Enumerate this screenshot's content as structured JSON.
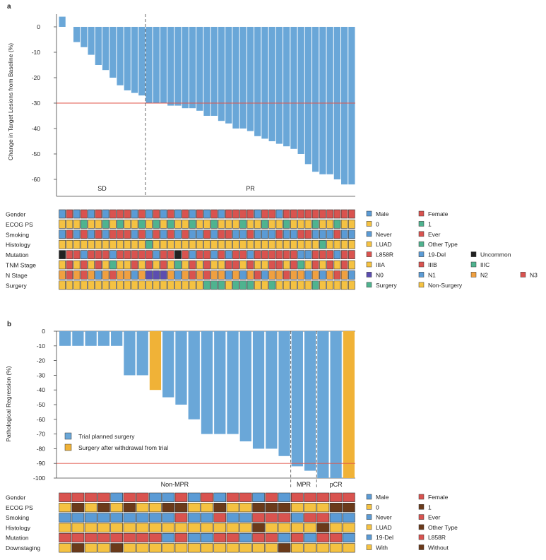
{
  "colors": {
    "bar": "#6aa7d8",
    "bar_alt": "#f0b237",
    "ref_line": "#e0564a",
    "red": "#d9534f",
    "blue": "#5b9bd5",
    "yellow": "#f5c242",
    "green": "#4fb38f",
    "orange": "#f0a040",
    "purple": "#5b4db0",
    "dark": "#222222",
    "brown": "#6b3a1a"
  },
  "chart_data": [
    {
      "type": "bar",
      "panel": "a",
      "ylabel": "Change in Target Lesions from Baseline (%)",
      "ylim": [
        -65,
        5
      ],
      "yticks": [
        0,
        -10,
        -20,
        -30,
        -40,
        -50,
        -60
      ],
      "reference_line": -30,
      "values": [
        4,
        0,
        -6,
        -8,
        -11,
        -15,
        -17,
        -20,
        -23,
        -25,
        -26,
        -27,
        -30,
        -30,
        -30,
        -31,
        -31,
        -32,
        -32,
        -33,
        -35,
        -35,
        -37,
        -38,
        -40,
        -40,
        -41,
        -43,
        -44,
        -45,
        -46,
        -47,
        -48,
        -50,
        -54,
        -57,
        -58,
        -58,
        -60,
        -62,
        -62
      ],
      "groups": [
        {
          "label": "SD",
          "start": 0,
          "end": 12
        },
        {
          "label": "PR",
          "start": 12,
          "end": 41
        }
      ]
    },
    {
      "type": "bar",
      "panel": "b",
      "ylabel": "Pathological Regression (%)",
      "ylim": [
        -100,
        0
      ],
      "yticks": [
        0,
        -10,
        -20,
        -30,
        -40,
        -50,
        -60,
        -70,
        -80,
        -90,
        -100
      ],
      "reference_line": -90,
      "values": [
        -10,
        -10,
        -10,
        -10,
        -10,
        -30,
        -30,
        -40,
        -45,
        -50,
        -60,
        -70,
        -70,
        -70,
        -75,
        -80,
        -80,
        -85,
        -92,
        -95,
        -100,
        -100,
        -100
      ],
      "bar_series": [
        0,
        0,
        0,
        0,
        0,
        0,
        0,
        1,
        0,
        0,
        0,
        0,
        0,
        0,
        0,
        0,
        0,
        0,
        0,
        0,
        0,
        0,
        1
      ],
      "series": [
        {
          "name": "Trial planned surgery"
        },
        {
          "name": "Surgery after withdrawal from trial"
        }
      ],
      "groups": [
        {
          "label": "Non-MPR",
          "start": 0,
          "end": 18
        },
        {
          "label": "MPR",
          "start": 18,
          "end": 20
        },
        {
          "label": "pCR",
          "start": 20,
          "end": 23
        }
      ]
    }
  ],
  "panel_a": {
    "label": "a",
    "rows": [
      {
        "name": "Gender",
        "cells": "BRBRBRBRRRBRBRBRBRBRBRBRRRRBRRBRRRRRRRRRR",
        "legend": [
          {
            "c": "B",
            "label": "Male"
          },
          {
            "c": "R",
            "label": "Female"
          }
        ]
      },
      {
        "name": "ECOG PS",
        "cells": "YYYGYYGYGYYGYGYGYYGYYGYYYGYYGYYGYYYGYYGYY",
        "legend": [
          {
            "c": "Y",
            "label": "0"
          },
          {
            "c": "G",
            "label": "1"
          }
        ]
      },
      {
        "name": "Smoking",
        "cells": "BRBRBRBRRRBRBRBRBRBBRBRRBBRBBBRBBRRBBBRBB",
        "legend": [
          {
            "c": "B",
            "label": "Never"
          },
          {
            "c": "R",
            "label": "Ever"
          }
        ]
      },
      {
        "name": "Histology",
        "cells": "YYYYYYYYYYYYGYYYYYYYYYYYYYYYYYYYYYYYGYYYY",
        "legend": [
          {
            "c": "Y",
            "label": "LUAD"
          },
          {
            "c": "G",
            "label": "Other Type"
          }
        ]
      },
      {
        "name": "Mutation",
        "cells": "KRRBRRRBRRRRRBRRKRBRRBRBRRBRRRRRRBBRRRBRR",
        "legend": [
          {
            "c": "R",
            "label": "L858R"
          },
          {
            "c": "B",
            "label": "19-Del"
          },
          {
            "c": "K",
            "label": "Uncommon"
          }
        ]
      },
      {
        "name": "TNM Stage",
        "cells": "YRYRYRYGYYRYRYRYGYRYRYYRRYRYYRRYRGYRYRYRY",
        "legend": [
          {
            "c": "Y",
            "label": "IIIA"
          },
          {
            "c": "R",
            "label": "IIIB"
          },
          {
            "c": "G",
            "label": "IIIC"
          }
        ]
      },
      {
        "name": "N Stage",
        "cells": "OROROBOROOBOPPPOBOROROOBOBORBOOROOBOBOROB",
        "legend": [
          {
            "c": "P",
            "label": "N0"
          },
          {
            "c": "B",
            "label": "N1"
          },
          {
            "c": "O",
            "label": "N2"
          },
          {
            "c": "R",
            "label": "N3"
          }
        ]
      },
      {
        "name": "Surgery",
        "cells": "YYYYYYYYYYYYYYYYYYYYGGGYGGGYYGYYYYYGYYYYY",
        "legend": [
          {
            "c": "G",
            "label": "Surgery"
          },
          {
            "c": "Y",
            "label": "Non-Surgery"
          }
        ]
      }
    ]
  },
  "panel_b": {
    "label": "b",
    "rows": [
      {
        "name": "Gender",
        "cells": "RRRRBRRBBRBRBRRBRBRRRRR",
        "legend": [
          {
            "c": "B",
            "label": "Male"
          },
          {
            "c": "R",
            "label": "Female"
          }
        ]
      },
      {
        "name": "ECOG PS",
        "cells": "YNYNYNYYNNYYNYYNNNYYYNN",
        "legend": [
          {
            "c": "Y",
            "label": "0"
          },
          {
            "c": "N",
            "label": "1"
          }
        ]
      },
      {
        "name": "Smoking",
        "cells": "BBBBBBBBBRBBRBBRRRBRRBB",
        "legend": [
          {
            "c": "B",
            "label": "Never"
          },
          {
            "c": "R",
            "label": "Ever"
          }
        ]
      },
      {
        "name": "Histology",
        "cells": "YYYYYYYYYYYYYYYNYYYYNYY",
        "legend": [
          {
            "c": "Y",
            "label": "LUAD"
          },
          {
            "c": "N",
            "label": "Other Type"
          }
        ]
      },
      {
        "name": "Mutation",
        "cells": "RRRRRRRRBRBBRRBRRBRBRRB",
        "legend": [
          {
            "c": "B",
            "label": "19-Del"
          },
          {
            "c": "R",
            "label": "L858R"
          }
        ]
      },
      {
        "name": "Downstaging",
        "cells": "YNYYNYYYYYYYYYYYYNYYYYY",
        "legend": [
          {
            "c": "Y",
            "label": "With"
          },
          {
            "c": "N",
            "label": "Without"
          }
        ]
      }
    ]
  }
}
